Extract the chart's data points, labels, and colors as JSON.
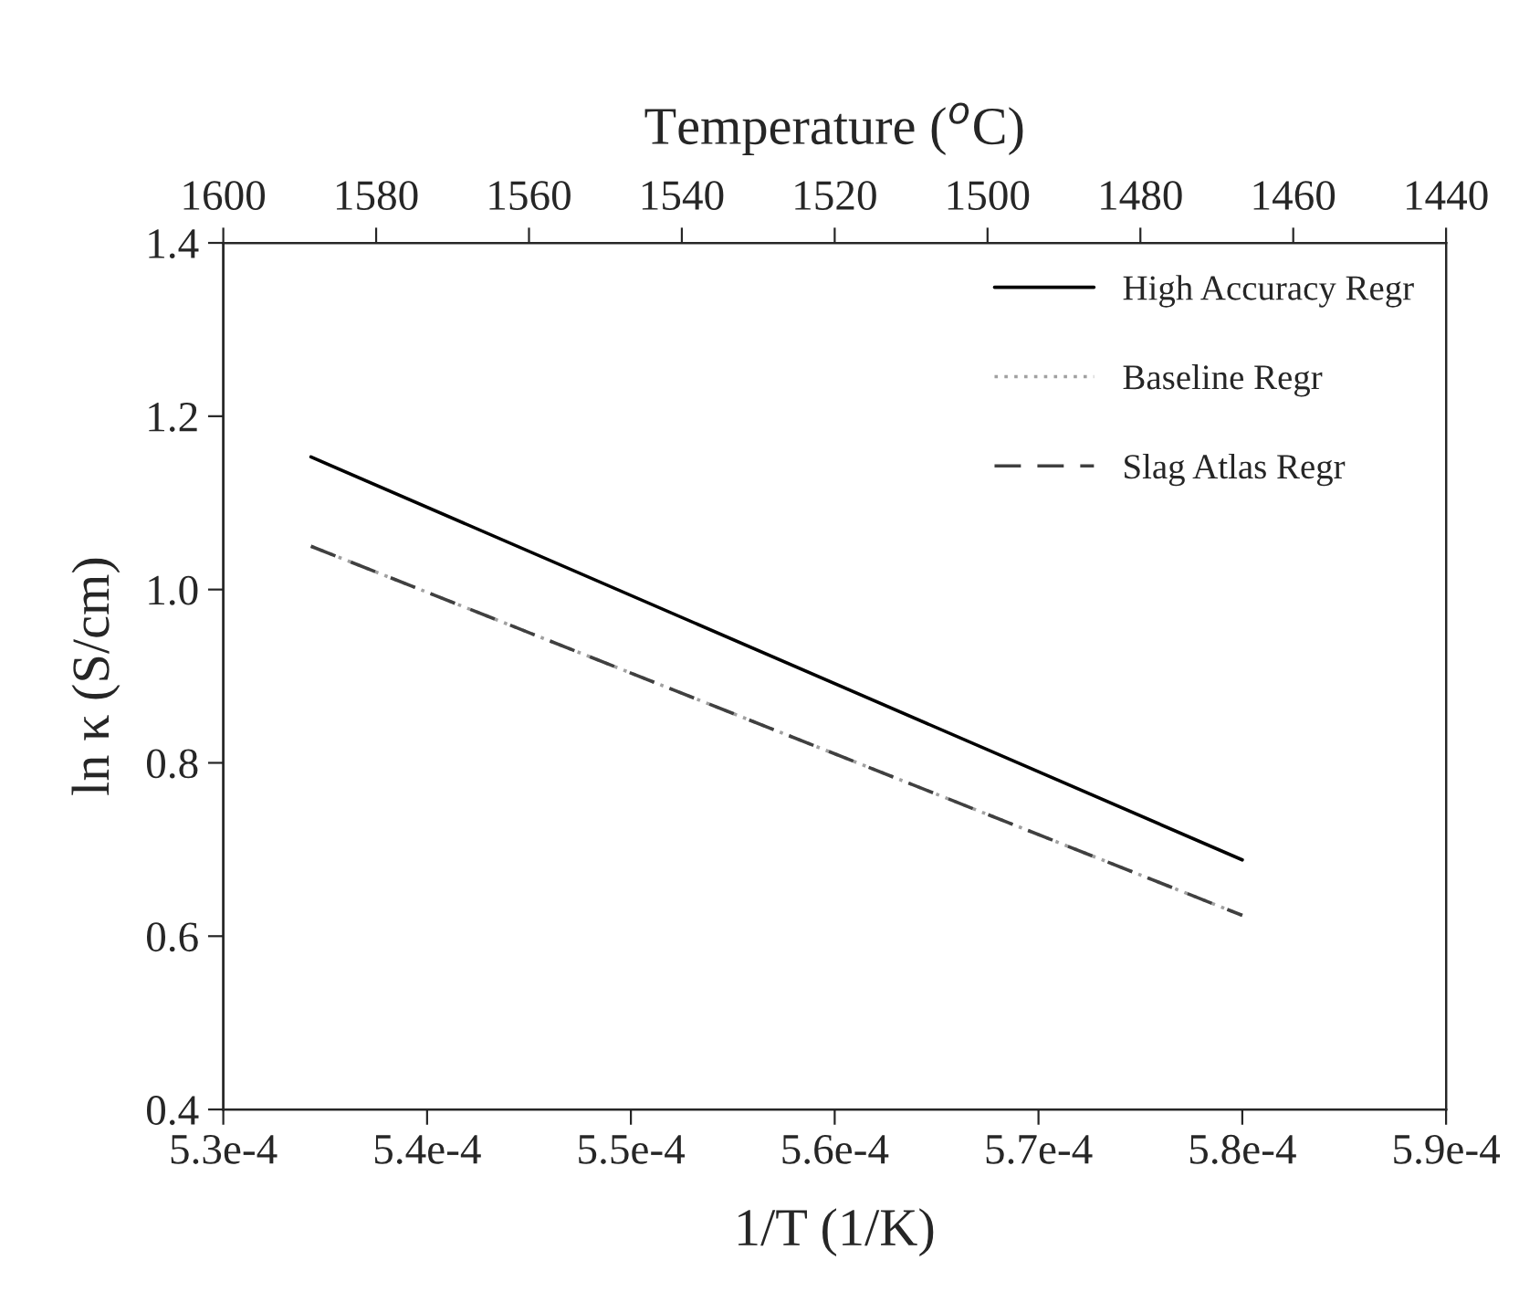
{
  "chart_data": {
    "type": "line",
    "xlabel": "1/T (1/K)",
    "ylabel": "ln κ (S/cm)",
    "x2label": "Temperature ($^{o}$C)",
    "x": [
      0.0005343,
      0.00058
    ],
    "series": [
      {
        "name": "High Accuracy Regr",
        "color": "#000000",
        "line_style": "solid",
        "values": [
          1.153,
          0.688
        ]
      },
      {
        "name": "Baseline Regr",
        "color": "#a0a0a0",
        "line_style": "dotted",
        "values": [
          1.05,
          0.624
        ]
      },
      {
        "name": "Slag Atlas Regr",
        "color": "#404040",
        "line_style": "dashed",
        "values": [
          1.05,
          0.624
        ]
      }
    ],
    "xlim": [
      0.00053,
      0.00059
    ],
    "xticks": [
      {
        "value": 0.00053,
        "label": "5.3e-4"
      },
      {
        "value": 0.00054,
        "label": "5.4e-4"
      },
      {
        "value": 0.00055,
        "label": "5.5e-4"
      },
      {
        "value": 0.00056,
        "label": "5.6e-4"
      },
      {
        "value": 0.00057,
        "label": "5.7e-4"
      },
      {
        "value": 0.00058,
        "label": "5.8e-4"
      },
      {
        "value": 0.00059,
        "label": "5.9e-4"
      }
    ],
    "ylim": [
      0.4,
      1.4
    ],
    "yticks": [
      0.4,
      0.6,
      0.8,
      {
        "value": 1,
        "label": "1.0"
      },
      1.2,
      1.4
    ],
    "x2lim": [
      1600,
      1440
    ],
    "x2ticks": [
      1600,
      1580,
      1560,
      1540,
      1520,
      1500,
      1480,
      1460,
      1440
    ],
    "grid": false,
    "legend": "top right",
    "marker": "none"
  }
}
